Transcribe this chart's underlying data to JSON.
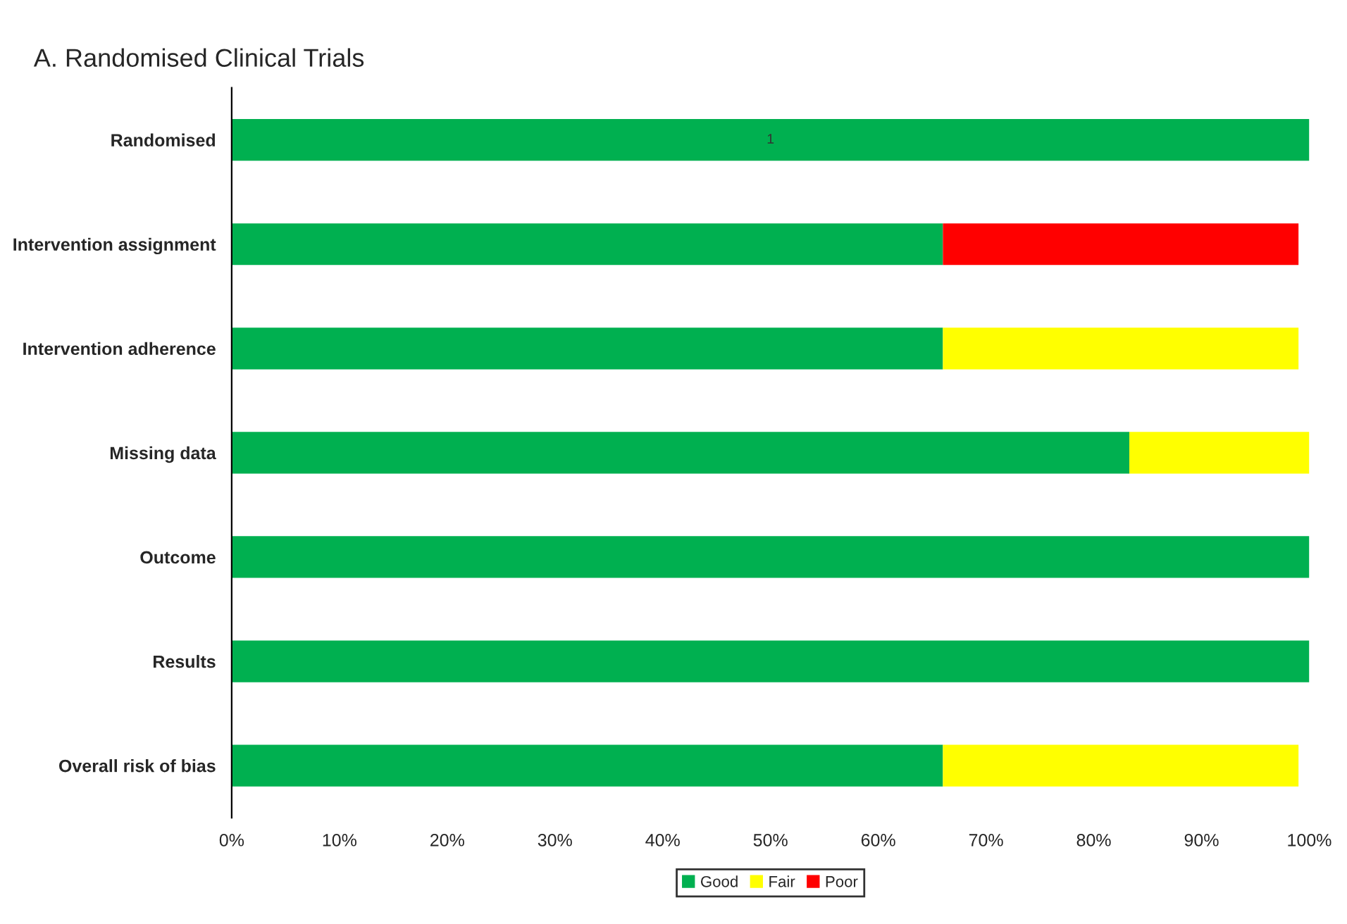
{
  "chart_data": {
    "type": "bar",
    "orientation": "horizontal",
    "stacked": true,
    "title": "A. Randomised Clinical Trials",
    "categories": [
      "Randomised",
      "Intervention assignment",
      "Intervention adherence",
      "Missing data",
      "Outcome",
      "Results",
      "Overall risk of bias"
    ],
    "series": [
      {
        "name": "Good",
        "color": "#00b050",
        "values": [
          100,
          66,
          66,
          83.3,
          100,
          100,
          66
        ]
      },
      {
        "name": "Fair",
        "color": "#ffff00",
        "values": [
          0,
          0,
          33,
          16.7,
          0,
          0,
          33
        ]
      },
      {
        "name": "Poor",
        "color": "#ff0000",
        "values": [
          0,
          33,
          0,
          0,
          0,
          0,
          0
        ]
      }
    ],
    "xlim": [
      0,
      100
    ],
    "xticks": [
      {
        "value": 0,
        "label": "0%"
      },
      {
        "value": 10,
        "label": "10%"
      },
      {
        "value": 20,
        "label": "20%"
      },
      {
        "value": 30,
        "label": "30%"
      },
      {
        "value": 40,
        "label": "40%"
      },
      {
        "value": 50,
        "label": "50%"
      },
      {
        "value": 60,
        "label": "60%"
      },
      {
        "value": 70,
        "label": "70%"
      },
      {
        "value": 80,
        "label": "80%"
      },
      {
        "value": 90,
        "label": "90%"
      },
      {
        "value": 100,
        "label": "100%"
      }
    ],
    "annotations": [
      "1"
    ],
    "grid": false,
    "legend": "bottom"
  }
}
